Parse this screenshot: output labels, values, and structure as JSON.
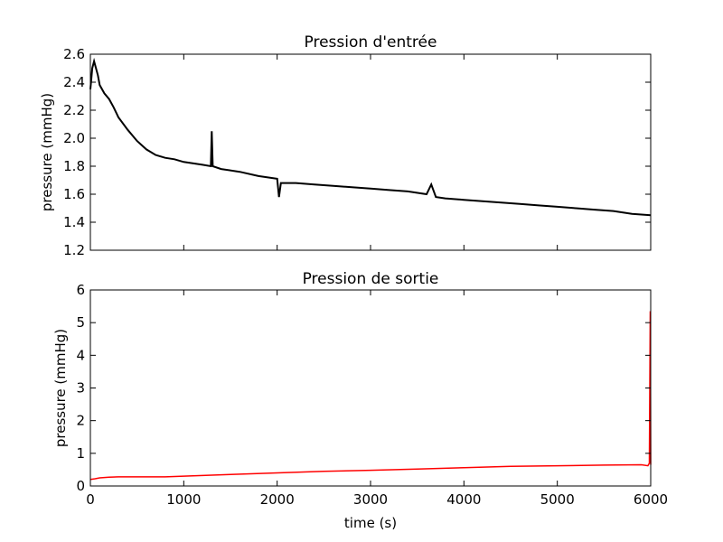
{
  "chart_data": [
    {
      "type": "line",
      "title": "Pression d'entrée",
      "xlabel": "",
      "ylabel": "pressure (mmHg)",
      "xlim": [
        0,
        6000
      ],
      "ylim": [
        1.2,
        2.6
      ],
      "x_ticks": [
        "0",
        "1000",
        "2000",
        "3000",
        "4000",
        "5000",
        "6000"
      ],
      "x_tick_labels_visible": false,
      "y_ticks": [
        "1.2",
        "1.4",
        "1.6",
        "1.8",
        "2.0",
        "2.2",
        "2.4",
        "2.6"
      ],
      "grid": false,
      "color": "#000000",
      "series": [
        {
          "x": [
            0,
            20,
            40,
            60,
            80,
            100,
            150,
            200,
            250,
            300,
            400,
            500,
            600,
            700,
            800,
            900,
            1000,
            1200,
            1290,
            1300,
            1310,
            1400,
            1600,
            1800,
            2000,
            2020,
            2040,
            2200,
            2400,
            2600,
            2800,
            3000,
            3200,
            3400,
            3600,
            3650,
            3700,
            3800,
            4000,
            4200,
            4400,
            4600,
            4800,
            5000,
            5200,
            5400,
            5600,
            5800,
            6000
          ],
          "y": [
            2.35,
            2.5,
            2.55,
            2.5,
            2.45,
            2.38,
            2.32,
            2.28,
            2.22,
            2.15,
            2.06,
            1.98,
            1.92,
            1.88,
            1.86,
            1.85,
            1.83,
            1.81,
            1.8,
            2.05,
            1.8,
            1.78,
            1.76,
            1.73,
            1.71,
            1.58,
            1.68,
            1.68,
            1.67,
            1.66,
            1.65,
            1.64,
            1.63,
            1.62,
            1.6,
            1.67,
            1.58,
            1.57,
            1.56,
            1.55,
            1.54,
            1.53,
            1.52,
            1.51,
            1.5,
            1.49,
            1.48,
            1.46,
            1.45
          ]
        }
      ]
    },
    {
      "type": "line",
      "title": "Pression de sortie",
      "xlabel": "time (s)",
      "ylabel": "pressure (mmHg)",
      "xlim": [
        0,
        6000
      ],
      "ylim": [
        0,
        6
      ],
      "x_ticks": [
        "0",
        "1000",
        "2000",
        "3000",
        "4000",
        "5000",
        "6000"
      ],
      "y_ticks": [
        "0",
        "1",
        "2",
        "3",
        "4",
        "5",
        "6"
      ],
      "grid": false,
      "color": "#ff0000",
      "series": [
        {
          "x": [
            0,
            50,
            100,
            200,
            300,
            500,
            800,
            1000,
            1500,
            2000,
            2500,
            3000,
            3500,
            4000,
            4500,
            5000,
            5500,
            5900,
            5970,
            5985,
            5995,
            6000
          ],
          "y": [
            0.2,
            0.22,
            0.25,
            0.27,
            0.28,
            0.28,
            0.28,
            0.3,
            0.35,
            0.4,
            0.45,
            0.48,
            0.52,
            0.56,
            0.6,
            0.62,
            0.64,
            0.65,
            0.62,
            0.7,
            5.35,
            0.65
          ]
        }
      ]
    }
  ]
}
